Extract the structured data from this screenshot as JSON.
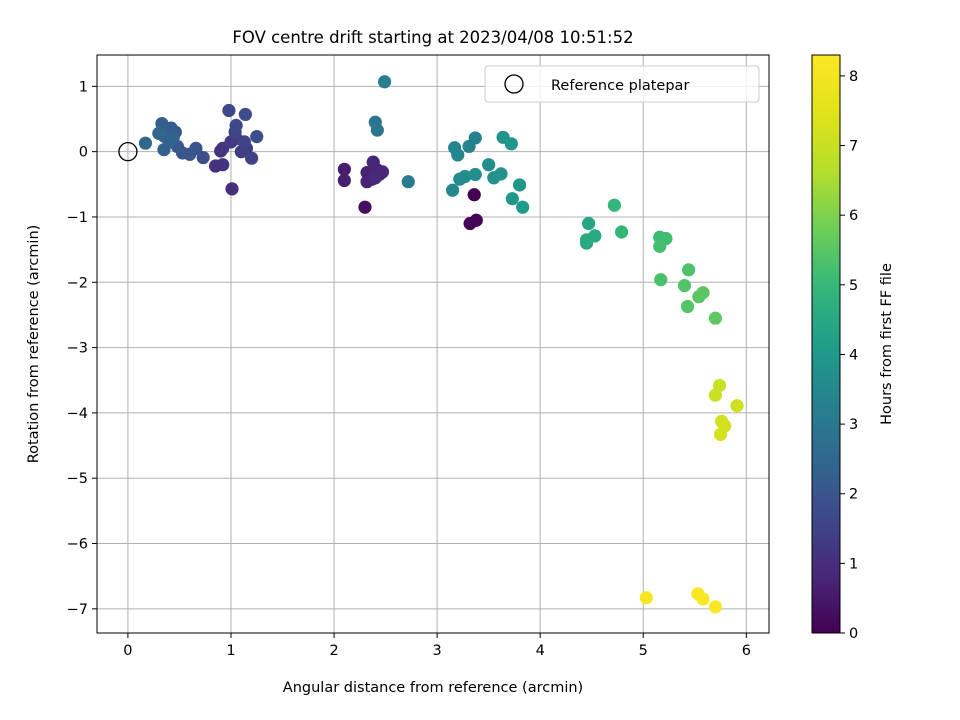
{
  "chart_data": {
    "type": "scatter",
    "title": "FOV centre drift starting at 2023/04/08 10:51:52",
    "xlabel": "Angular distance from reference (arcmin)",
    "ylabel": "Rotation from reference (arcmin)",
    "xlim": [
      -0.3,
      6.22
    ],
    "ylim": [
      -7.37,
      1.48
    ],
    "x_ticks": [
      0,
      1,
      2,
      3,
      4,
      5,
      6
    ],
    "y_ticks": [
      1,
      0,
      -1,
      -2,
      -3,
      -4,
      -5,
      -6,
      -7
    ],
    "x_tick_labels": [
      "0",
      "1",
      "2",
      "3",
      "4",
      "5",
      "6"
    ],
    "y_tick_labels": [
      "1",
      "0",
      "−1",
      "−2",
      "−3",
      "−4",
      "−5",
      "−6",
      "−7"
    ],
    "grid": true,
    "legend": {
      "placement": "top-right",
      "entries": [
        {
          "label": "Reference platepar",
          "marker": "open-circle"
        }
      ]
    },
    "reference_point": {
      "x": 0,
      "y": 0
    },
    "colorbar": {
      "label": "Hours from first FF file",
      "colormap": "viridis",
      "range": [
        0,
        8.3
      ],
      "ticks": [
        0,
        1,
        2,
        3,
        4,
        5,
        6,
        7,
        8
      ],
      "tick_labels": [
        "0",
        "1",
        "2",
        "3",
        "4",
        "5",
        "6",
        "7",
        "8"
      ]
    },
    "points": [
      {
        "x": 3.36,
        "y": -0.66,
        "hours": 0.0
      },
      {
        "x": 3.32,
        "y": -1.1,
        "hours": 0.05
      },
      {
        "x": 3.38,
        "y": -1.05,
        "hours": 0.1
      },
      {
        "x": 2.3,
        "y": -0.85,
        "hours": 0.3
      },
      {
        "x": 2.1,
        "y": -0.27,
        "hours": 0.6
      },
      {
        "x": 2.1,
        "y": -0.44,
        "hours": 0.65
      },
      {
        "x": 2.32,
        "y": -0.32,
        "hours": 0.7
      },
      {
        "x": 2.32,
        "y": -0.46,
        "hours": 0.72
      },
      {
        "x": 2.37,
        "y": -0.42,
        "hours": 0.75
      },
      {
        "x": 2.38,
        "y": -0.16,
        "hours": 0.78
      },
      {
        "x": 2.42,
        "y": -0.28,
        "hours": 0.8
      },
      {
        "x": 2.44,
        "y": -0.35,
        "hours": 0.82
      },
      {
        "x": 2.47,
        "y": -0.31,
        "hours": 0.85
      },
      {
        "x": 2.4,
        "y": -0.4,
        "hours": 0.88
      },
      {
        "x": 1.01,
        "y": -0.57,
        "hours": 1.0
      },
      {
        "x": 0.85,
        "y": -0.22,
        "hours": 1.05
      },
      {
        "x": 0.92,
        "y": -0.2,
        "hours": 1.1
      },
      {
        "x": 0.9,
        "y": 0.01,
        "hours": 1.15
      },
      {
        "x": 0.92,
        "y": 0.05,
        "hours": 1.2
      },
      {
        "x": 1.0,
        "y": 0.15,
        "hours": 1.25
      },
      {
        "x": 1.05,
        "y": 0.2,
        "hours": 1.3
      },
      {
        "x": 1.1,
        "y": 0.0,
        "hours": 1.35
      },
      {
        "x": 1.15,
        "y": 0.05,
        "hours": 1.4
      },
      {
        "x": 1.2,
        "y": -0.1,
        "hours": 1.45
      },
      {
        "x": 1.13,
        "y": 0.15,
        "hours": 1.5
      },
      {
        "x": 1.04,
        "y": 0.3,
        "hours": 1.55
      },
      {
        "x": 1.05,
        "y": 0.4,
        "hours": 1.6
      },
      {
        "x": 0.98,
        "y": 0.63,
        "hours": 1.7
      },
      {
        "x": 1.14,
        "y": 0.57,
        "hours": 1.75
      },
      {
        "x": 1.25,
        "y": 0.23,
        "hours": 1.8
      },
      {
        "x": 0.73,
        "y": -0.09,
        "hours": 1.85
      },
      {
        "x": 0.66,
        "y": 0.05,
        "hours": 1.9
      },
      {
        "x": 0.6,
        "y": -0.04,
        "hours": 1.95
      },
      {
        "x": 0.53,
        "y": -0.02,
        "hours": 2.0
      },
      {
        "x": 0.48,
        "y": 0.08,
        "hours": 2.05
      },
      {
        "x": 0.46,
        "y": 0.3,
        "hours": 2.1
      },
      {
        "x": 0.42,
        "y": 0.36,
        "hours": 2.15
      },
      {
        "x": 0.35,
        "y": 0.24,
        "hours": 2.2
      },
      {
        "x": 0.33,
        "y": 0.43,
        "hours": 2.25
      },
      {
        "x": 0.35,
        "y": 0.03,
        "hours": 2.3
      },
      {
        "x": 0.4,
        "y": 0.15,
        "hours": 2.35
      },
      {
        "x": 0.44,
        "y": 0.22,
        "hours": 2.4
      },
      {
        "x": 0.3,
        "y": 0.28,
        "hours": 2.45
      },
      {
        "x": 0.17,
        "y": 0.13,
        "hours": 2.5
      },
      {
        "x": 2.4,
        "y": 0.45,
        "hours": 2.9
      },
      {
        "x": 2.42,
        "y": 0.33,
        "hours": 2.95
      },
      {
        "x": 2.72,
        "y": -0.46,
        "hours": 3.1
      },
      {
        "x": 2.49,
        "y": 1.07,
        "hours": 3.2
      },
      {
        "x": 3.37,
        "y": 0.21,
        "hours": 3.3
      },
      {
        "x": 3.31,
        "y": 0.08,
        "hours": 3.35
      },
      {
        "x": 3.17,
        "y": 0.06,
        "hours": 3.4
      },
      {
        "x": 3.2,
        "y": -0.05,
        "hours": 3.45
      },
      {
        "x": 3.15,
        "y": -0.59,
        "hours": 3.5
      },
      {
        "x": 3.22,
        "y": -0.42,
        "hours": 3.55
      },
      {
        "x": 3.27,
        "y": -0.38,
        "hours": 3.6
      },
      {
        "x": 3.37,
        "y": -0.35,
        "hours": 3.65
      },
      {
        "x": 3.5,
        "y": -0.2,
        "hours": 3.7
      },
      {
        "x": 3.55,
        "y": -0.4,
        "hours": 3.75
      },
      {
        "x": 3.62,
        "y": -0.34,
        "hours": 3.8
      },
      {
        "x": 3.64,
        "y": 0.22,
        "hours": 3.85
      },
      {
        "x": 3.72,
        "y": 0.12,
        "hours": 3.9
      },
      {
        "x": 3.8,
        "y": -0.51,
        "hours": 3.95
      },
      {
        "x": 3.73,
        "y": -0.72,
        "hours": 4.0
      },
      {
        "x": 3.83,
        "y": -0.85,
        "hours": 4.05
      },
      {
        "x": 4.47,
        "y": -1.1,
        "hours": 4.4
      },
      {
        "x": 4.45,
        "y": -1.4,
        "hours": 4.45
      },
      {
        "x": 4.53,
        "y": -1.29,
        "hours": 4.5
      },
      {
        "x": 4.45,
        "y": -1.35,
        "hours": 4.55
      },
      {
        "x": 4.72,
        "y": -0.82,
        "hours": 4.9
      },
      {
        "x": 4.79,
        "y": -1.23,
        "hours": 4.95
      },
      {
        "x": 5.16,
        "y": -1.31,
        "hours": 5.1
      },
      {
        "x": 5.22,
        "y": -1.33,
        "hours": 5.15
      },
      {
        "x": 5.16,
        "y": -1.45,
        "hours": 5.2
      },
      {
        "x": 5.17,
        "y": -1.96,
        "hours": 5.3
      },
      {
        "x": 5.44,
        "y": -1.81,
        "hours": 5.35
      },
      {
        "x": 5.4,
        "y": -2.05,
        "hours": 5.4
      },
      {
        "x": 5.43,
        "y": -2.37,
        "hours": 5.45
      },
      {
        "x": 5.54,
        "y": -2.22,
        "hours": 5.5
      },
      {
        "x": 5.58,
        "y": -2.16,
        "hours": 5.55
      },
      {
        "x": 5.7,
        "y": -2.55,
        "hours": 5.6
      },
      {
        "x": 5.74,
        "y": -3.58,
        "hours": 7.0
      },
      {
        "x": 5.7,
        "y": -3.73,
        "hours": 7.05
      },
      {
        "x": 5.91,
        "y": -3.89,
        "hours": 7.1
      },
      {
        "x": 5.76,
        "y": -4.13,
        "hours": 7.15
      },
      {
        "x": 5.79,
        "y": -4.2,
        "hours": 7.2
      },
      {
        "x": 5.75,
        "y": -4.33,
        "hours": 7.25
      },
      {
        "x": 5.03,
        "y": -6.83,
        "hours": 8.1
      },
      {
        "x": 5.53,
        "y": -6.77,
        "hours": 8.15
      },
      {
        "x": 5.58,
        "y": -6.85,
        "hours": 8.2
      },
      {
        "x": 5.7,
        "y": -6.97,
        "hours": 8.25
      }
    ]
  }
}
